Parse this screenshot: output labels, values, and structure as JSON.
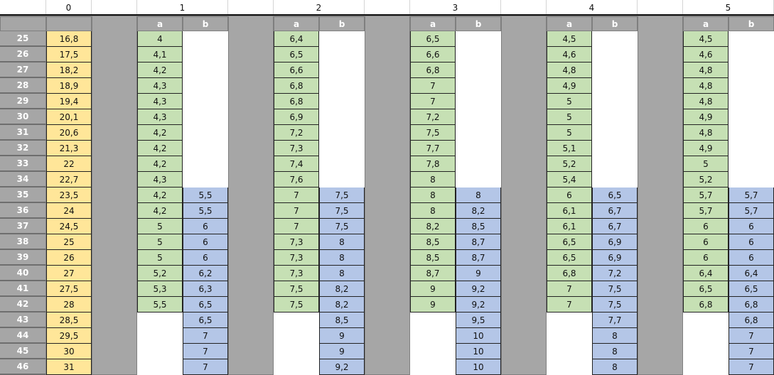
{
  "colors": {
    "yellow": "#ffe699",
    "green": "#c6e0b4",
    "blue": "#b4c6e7",
    "gray": "#a6a6a6"
  },
  "top_headers": [
    "0",
    "1",
    "2",
    "3",
    "4",
    "5"
  ],
  "sub_headers": {
    "a": "a",
    "b": "b"
  },
  "row_numbers": [
    "25",
    "26",
    "27",
    "28",
    "29",
    "30",
    "31",
    "32",
    "33",
    "34",
    "35",
    "36",
    "37",
    "38",
    "39",
    "40",
    "41",
    "42",
    "43",
    "44",
    "45",
    "46"
  ],
  "col0": [
    "16,8",
    "17,5",
    "18,2",
    "18,9",
    "19,4",
    "20,1",
    "20,6",
    "21,3",
    "22",
    "22,7",
    "23,5",
    "24",
    "24,5",
    "25",
    "26",
    "27",
    "27,5",
    "28",
    "28,5",
    "29,5",
    "30",
    "31"
  ],
  "groups": [
    {
      "a": [
        "4",
        "4,1",
        "4,2",
        "4,3",
        "4,3",
        "4,3",
        "4,2",
        "4,2",
        "4,2",
        "4,3",
        "4,2",
        "4,2",
        "5",
        "5",
        "5",
        "5,2",
        "5,3",
        "5,5",
        null,
        null,
        null,
        null
      ],
      "b": [
        null,
        null,
        null,
        null,
        null,
        null,
        null,
        null,
        null,
        null,
        "5,5",
        "5,5",
        "6",
        "6",
        "6",
        "6,2",
        "6,3",
        "6,5",
        "6,5",
        "7",
        "7",
        "7"
      ]
    },
    {
      "a": [
        "6,4",
        "6,5",
        "6,6",
        "6,8",
        "6,8",
        "6,9",
        "7,2",
        "7,3",
        "7,4",
        "7,6",
        "7",
        "7",
        "7",
        "7,3",
        "7,3",
        "7,3",
        "7,5",
        "7,5",
        null,
        null,
        null,
        null
      ],
      "b": [
        null,
        null,
        null,
        null,
        null,
        null,
        null,
        null,
        null,
        null,
        "7,5",
        "7,5",
        "7,5",
        "8",
        "8",
        "8",
        "8,2",
        "8,2",
        "8,5",
        "9",
        "9",
        "9,2"
      ]
    },
    {
      "a": [
        "6,5",
        "6,6",
        "6,8",
        "7",
        "7",
        "7,2",
        "7,5",
        "7,7",
        "7,8",
        "8",
        "8",
        "8",
        "8,2",
        "8,5",
        "8,5",
        "8,7",
        "9",
        "9",
        null,
        null,
        null,
        null
      ],
      "b": [
        null,
        null,
        null,
        null,
        null,
        null,
        null,
        null,
        null,
        null,
        "8",
        "8,2",
        "8,5",
        "8,7",
        "8,7",
        "9",
        "9,2",
        "9,2",
        "9,5",
        "10",
        "10",
        "10"
      ]
    },
    {
      "a": [
        "4,5",
        "4,6",
        "4,8",
        "4,9",
        "5",
        "5",
        "5",
        "5,1",
        "5,2",
        "5,4",
        "6",
        "6,1",
        "6,1",
        "6,5",
        "6,5",
        "6,8",
        "7",
        "7",
        null,
        null,
        null,
        null
      ],
      "b": [
        null,
        null,
        null,
        null,
        null,
        null,
        null,
        null,
        null,
        null,
        "6,5",
        "6,7",
        "6,7",
        "6,9",
        "6,9",
        "7,2",
        "7,5",
        "7,5",
        "7,7",
        "8",
        "8",
        "8"
      ]
    },
    {
      "a": [
        "4,5",
        "4,6",
        "4,8",
        "4,8",
        "4,8",
        "4,9",
        "4,8",
        "4,9",
        "5",
        "5,2",
        "5,7",
        "5,7",
        "6",
        "6",
        "6",
        "6,4",
        "6,5",
        "6,8",
        null,
        null,
        null,
        null
      ],
      "b": [
        null,
        null,
        null,
        null,
        null,
        null,
        null,
        null,
        null,
        null,
        "5,7",
        "5,7",
        "6",
        "6",
        "6",
        "6,4",
        "6,5",
        "6,8",
        "6,8",
        "7",
        "7",
        "7"
      ]
    }
  ]
}
